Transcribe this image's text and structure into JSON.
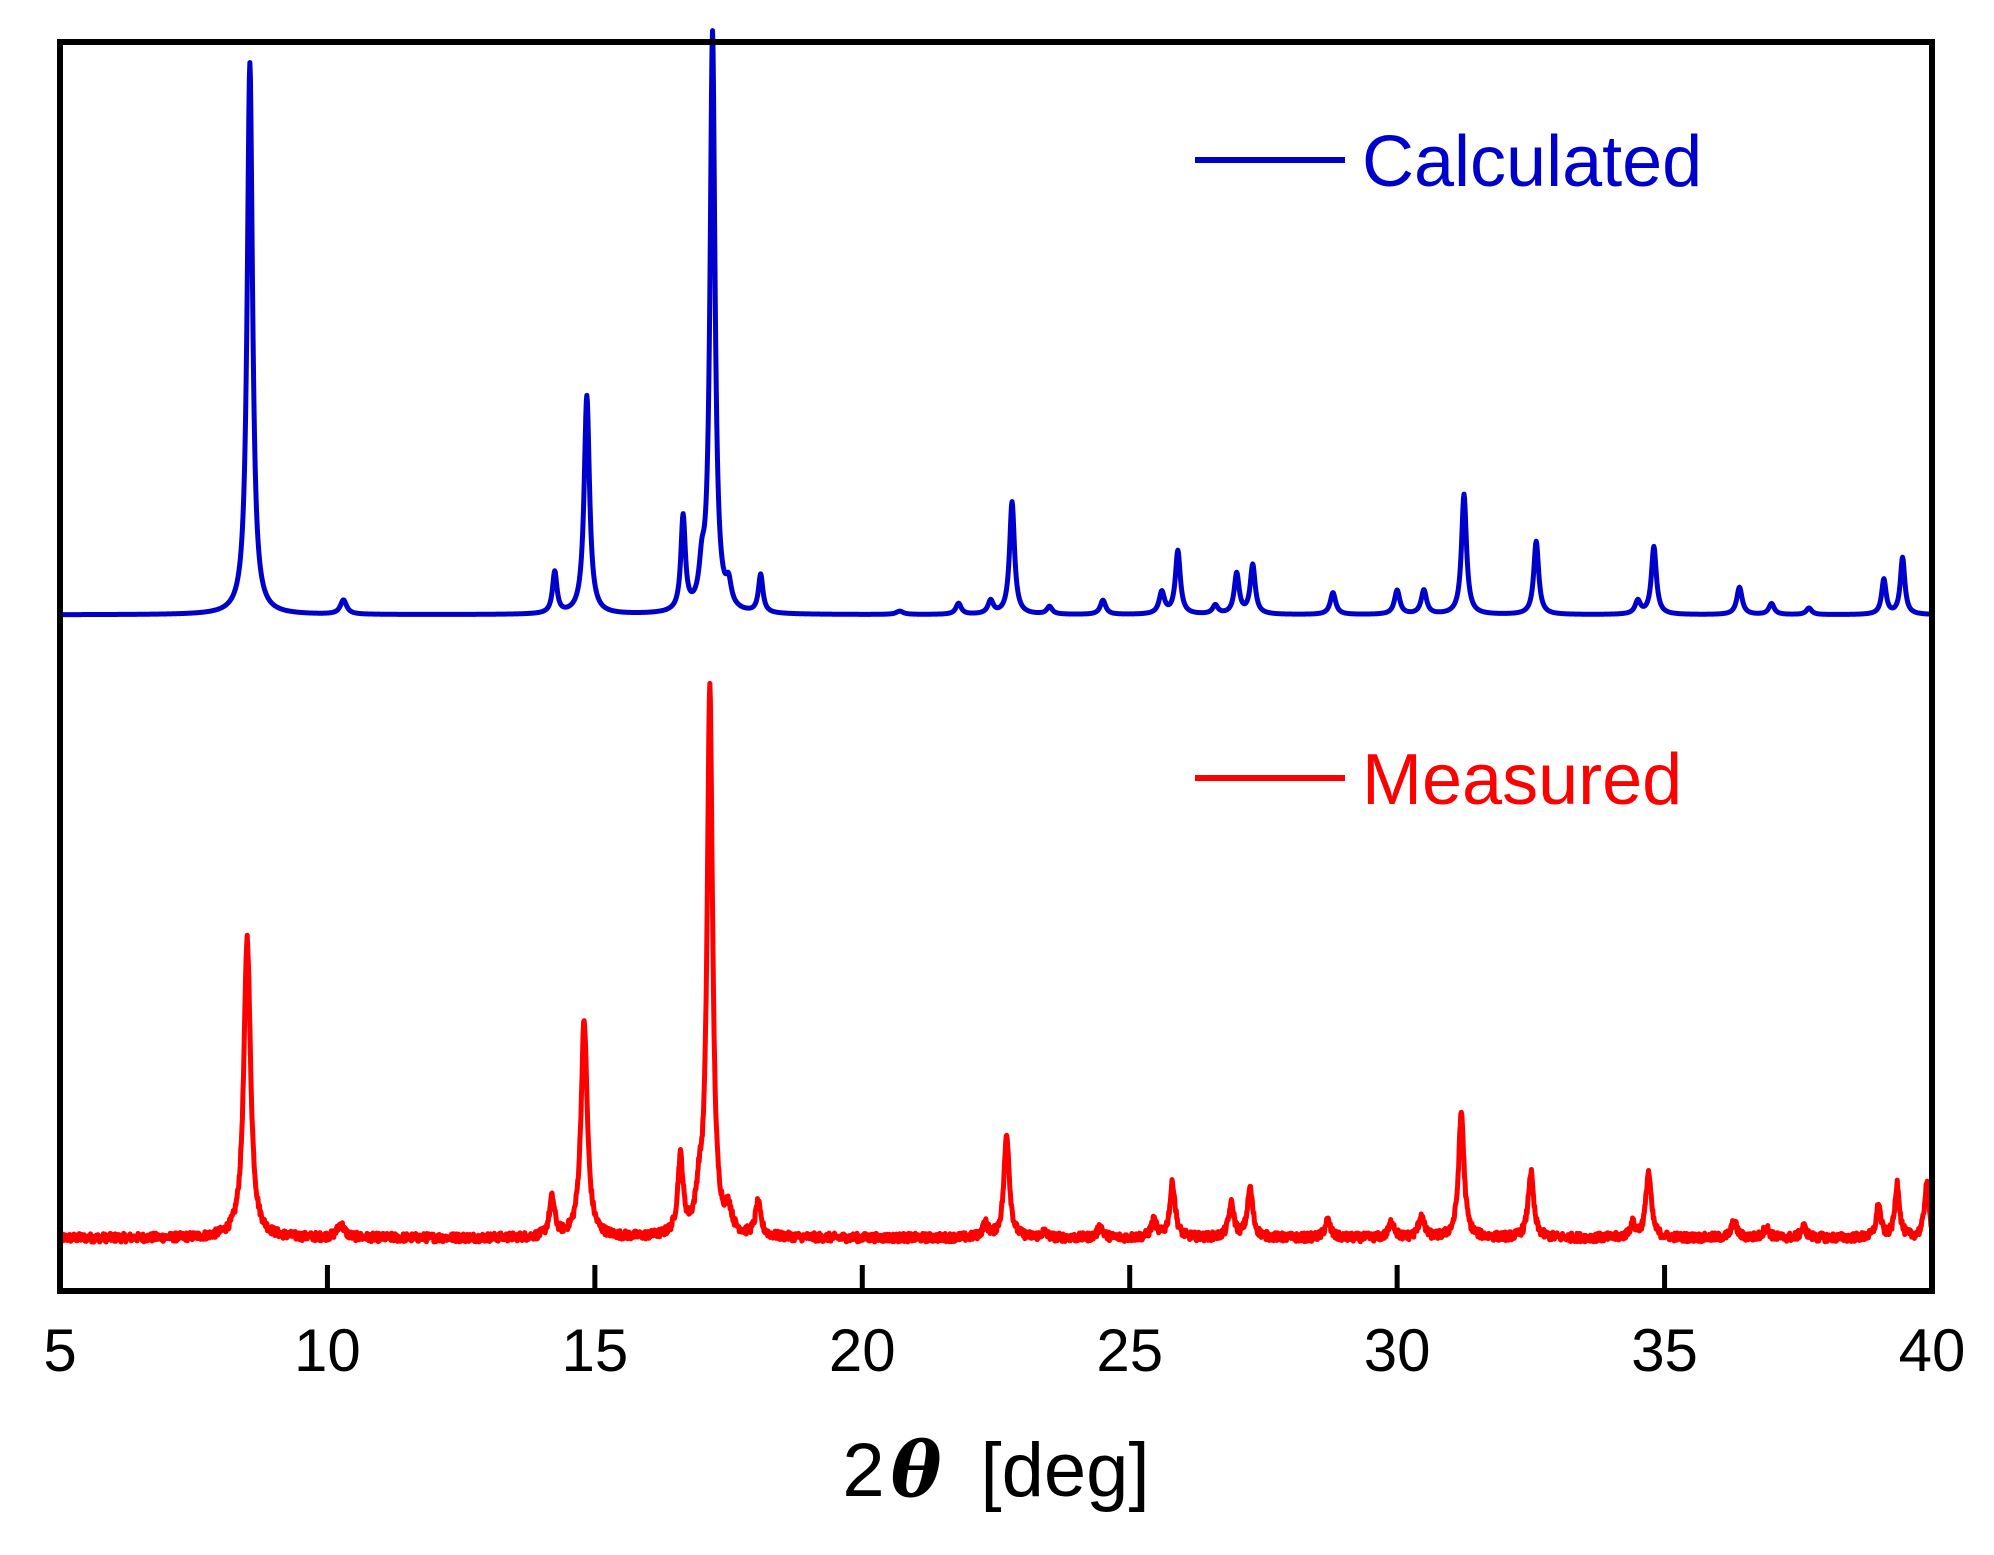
{
  "chart_data": {
    "type": "line",
    "title": "",
    "xlabel": "2θ [deg]",
    "xlabel_parts": {
      "prefix": "2",
      "symbol": "θ",
      "suffix": " [deg]"
    },
    "ylabel": "",
    "xlim": [
      5,
      40
    ],
    "ylim": [
      0,
      1.05
    ],
    "xticks": [
      5,
      10,
      15,
      20,
      25,
      30,
      35,
      40
    ],
    "grid": false,
    "legend_placement": "top-right",
    "series": [
      {
        "name": "Calculated",
        "color": "#0000cc",
        "baseline": 0.57,
        "noise": 0.0,
        "peaks": [
          [
            8.55,
            0.505,
            0.06
          ],
          [
            10.3,
            0.013,
            0.07
          ],
          [
            14.25,
            0.038,
            0.05
          ],
          [
            14.85,
            0.2,
            0.06
          ],
          [
            16.65,
            0.086,
            0.05
          ],
          [
            17.0,
            0.03,
            0.06
          ],
          [
            17.2,
            0.53,
            0.055
          ],
          [
            17.5,
            0.02,
            0.06
          ],
          [
            18.1,
            0.035,
            0.05
          ],
          [
            20.7,
            0.003,
            0.08
          ],
          [
            21.8,
            0.01,
            0.06
          ],
          [
            22.4,
            0.012,
            0.06
          ],
          [
            22.8,
            0.103,
            0.055
          ],
          [
            23.5,
            0.007,
            0.06
          ],
          [
            24.5,
            0.013,
            0.06
          ],
          [
            25.6,
            0.02,
            0.06
          ],
          [
            25.9,
            0.058,
            0.055
          ],
          [
            26.6,
            0.008,
            0.06
          ],
          [
            27.0,
            0.037,
            0.055
          ],
          [
            27.3,
            0.045,
            0.055
          ],
          [
            28.8,
            0.02,
            0.06
          ],
          [
            30.0,
            0.022,
            0.06
          ],
          [
            30.5,
            0.022,
            0.06
          ],
          [
            31.25,
            0.11,
            0.055
          ],
          [
            32.6,
            0.067,
            0.055
          ],
          [
            34.5,
            0.012,
            0.06
          ],
          [
            34.8,
            0.062,
            0.055
          ],
          [
            36.4,
            0.025,
            0.06
          ],
          [
            37.0,
            0.01,
            0.06
          ],
          [
            37.7,
            0.006,
            0.06
          ],
          [
            39.1,
            0.032,
            0.05
          ],
          [
            39.45,
            0.052,
            0.05
          ]
        ]
      },
      {
        "name": "Measured",
        "color": "#ff0000",
        "baseline": 0.0,
        "noise": 0.004,
        "peaks": [
          [
            8.5,
            0.275,
            0.075
          ],
          [
            10.25,
            0.012,
            0.08
          ],
          [
            14.2,
            0.035,
            0.06
          ],
          [
            14.8,
            0.198,
            0.07
          ],
          [
            16.6,
            0.07,
            0.06
          ],
          [
            16.95,
            0.03,
            0.07
          ],
          [
            17.15,
            0.5,
            0.06
          ],
          [
            17.5,
            0.02,
            0.07
          ],
          [
            18.05,
            0.03,
            0.06
          ],
          [
            22.3,
            0.012,
            0.06
          ],
          [
            22.7,
            0.095,
            0.06
          ],
          [
            23.4,
            0.005,
            0.06
          ],
          [
            24.45,
            0.01,
            0.06
          ],
          [
            25.45,
            0.015,
            0.06
          ],
          [
            25.8,
            0.05,
            0.06
          ],
          [
            26.9,
            0.03,
            0.06
          ],
          [
            27.25,
            0.045,
            0.06
          ],
          [
            28.7,
            0.016,
            0.06
          ],
          [
            29.9,
            0.015,
            0.06
          ],
          [
            30.45,
            0.02,
            0.06
          ],
          [
            31.2,
            0.115,
            0.06
          ],
          [
            32.5,
            0.06,
            0.06
          ],
          [
            34.4,
            0.012,
            0.06
          ],
          [
            34.7,
            0.06,
            0.06
          ],
          [
            36.3,
            0.015,
            0.06
          ],
          [
            36.9,
            0.01,
            0.06
          ],
          [
            37.6,
            0.01,
            0.06
          ],
          [
            39.0,
            0.03,
            0.05
          ],
          [
            39.35,
            0.05,
            0.05
          ],
          [
            39.9,
            0.05,
            0.05
          ]
        ]
      }
    ],
    "legend": [
      {
        "label": "Calculated",
        "color": "#0000cc"
      },
      {
        "label": "Measured",
        "color": "#ff0000"
      }
    ]
  }
}
